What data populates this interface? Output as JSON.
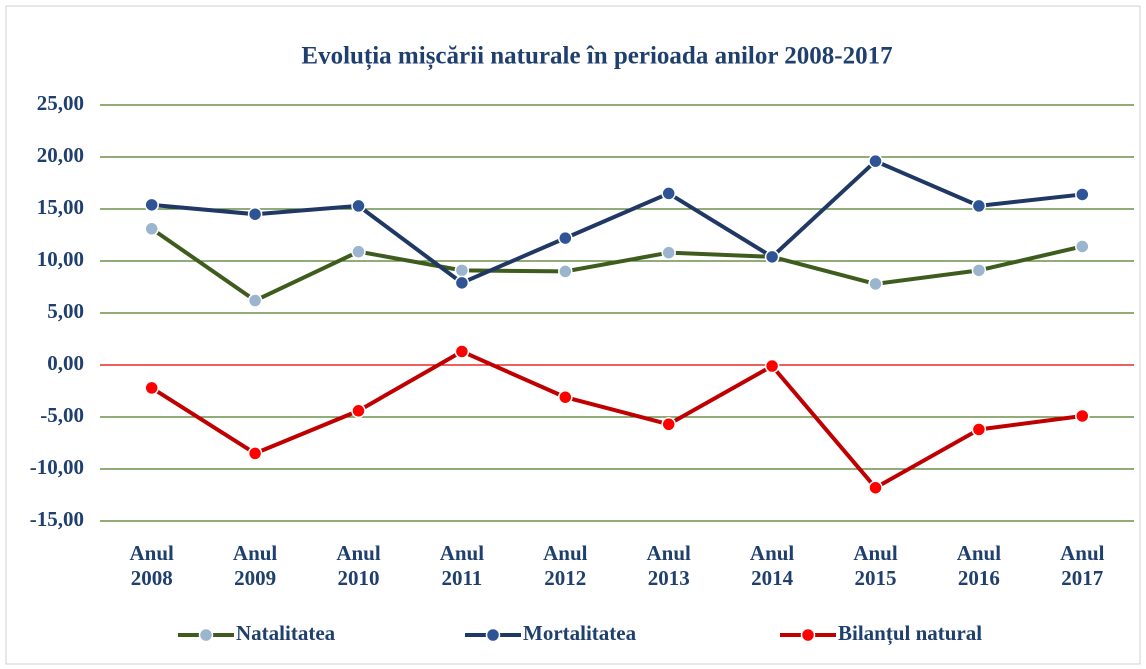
{
  "chart_data": {
    "type": "line",
    "title": "Evoluția mișcării naturale în perioada anilor 2008-2017",
    "categories": [
      "Anul 2008",
      "Anul 2009",
      "Anul 2010",
      "Anul 2011",
      "Anul 2012",
      "Anul 2013",
      "Anul 2014",
      "Anul 2015",
      "Anul 2016",
      "Anul 2017"
    ],
    "series": [
      {
        "name": "Natalitatea",
        "color": "#3e5c1e",
        "marker_color": "#9bb5cf",
        "values": [
          13.1,
          6.2,
          10.9,
          9.1,
          9.0,
          10.8,
          10.4,
          7.8,
          9.1,
          11.4
        ]
      },
      {
        "name": "Mortalitatea",
        "color": "#1f3864",
        "marker_color": "#2e5496",
        "values": [
          15.4,
          14.5,
          15.3,
          7.9,
          12.2,
          16.5,
          10.4,
          19.6,
          15.3,
          16.4
        ]
      },
      {
        "name": "Bilanțul natural",
        "color": "#c00000",
        "marker_color": "#ff0000",
        "values": [
          -2.2,
          -8.5,
          -4.4,
          1.3,
          -3.1,
          -5.7,
          -0.1,
          -11.8,
          -6.2,
          -4.9
        ]
      }
    ],
    "ylim": [
      -15,
      25
    ],
    "yticks": [
      {
        "value": -15,
        "label": "-15,00"
      },
      {
        "value": -10,
        "label": "-10,00"
      },
      {
        "value": -5,
        "label": "-5,00"
      },
      {
        "value": 0,
        "label": "0,00"
      },
      {
        "value": 5,
        "label": "5,00"
      },
      {
        "value": 10,
        "label": "10,00"
      },
      {
        "value": 15,
        "label": "15,00"
      },
      {
        "value": 20,
        "label": "20,00"
      },
      {
        "value": 25,
        "label": "25,00"
      }
    ],
    "grid": true,
    "grid_color": "#4f7a28",
    "zero_line_color": "#e00000",
    "legend": "bottom"
  }
}
